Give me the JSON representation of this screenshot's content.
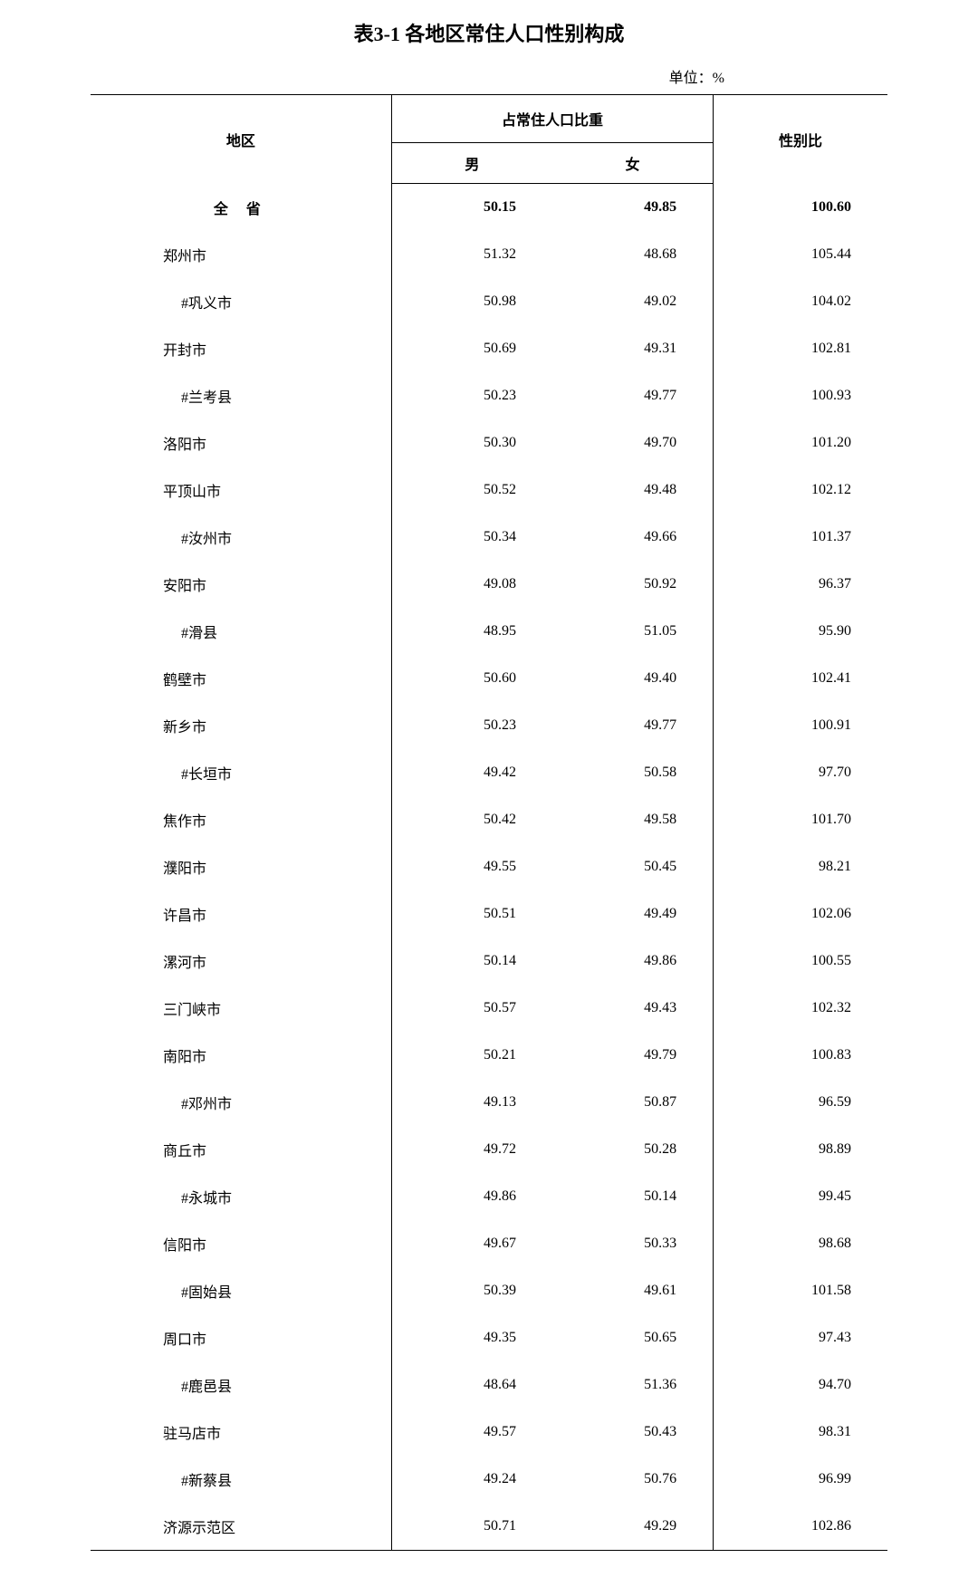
{
  "title": "表3-1 各地区常住人口性别构成",
  "unit": "单位：%",
  "headers": {
    "region": "地区",
    "proportion": "占常住人口比重",
    "male": "男",
    "female": "女",
    "ratio": "性别比"
  },
  "colors": {
    "background": "#ffffff",
    "text": "#000000",
    "border": "#000000"
  },
  "rows": [
    {
      "region": "全 省",
      "male": "50.15",
      "female": "49.85",
      "ratio": "100.60",
      "bold": true,
      "indent": false
    },
    {
      "region": "郑州市",
      "male": "51.32",
      "female": "48.68",
      "ratio": "105.44",
      "bold": false,
      "indent": false
    },
    {
      "region": "#巩义市",
      "male": "50.98",
      "female": "49.02",
      "ratio": "104.02",
      "bold": false,
      "indent": true
    },
    {
      "region": "开封市",
      "male": "50.69",
      "female": "49.31",
      "ratio": "102.81",
      "bold": false,
      "indent": false
    },
    {
      "region": "#兰考县",
      "male": "50.23",
      "female": "49.77",
      "ratio": "100.93",
      "bold": false,
      "indent": true
    },
    {
      "region": "洛阳市",
      "male": "50.30",
      "female": "49.70",
      "ratio": "101.20",
      "bold": false,
      "indent": false
    },
    {
      "region": "平顶山市",
      "male": "50.52",
      "female": "49.48",
      "ratio": "102.12",
      "bold": false,
      "indent": false
    },
    {
      "region": "#汝州市",
      "male": "50.34",
      "female": "49.66",
      "ratio": "101.37",
      "bold": false,
      "indent": true
    },
    {
      "region": "安阳市",
      "male": "49.08",
      "female": "50.92",
      "ratio": "96.37",
      "bold": false,
      "indent": false
    },
    {
      "region": "#滑县",
      "male": "48.95",
      "female": "51.05",
      "ratio": "95.90",
      "bold": false,
      "indent": true
    },
    {
      "region": "鹤壁市",
      "male": "50.60",
      "female": "49.40",
      "ratio": "102.41",
      "bold": false,
      "indent": false
    },
    {
      "region": "新乡市",
      "male": "50.23",
      "female": "49.77",
      "ratio": "100.91",
      "bold": false,
      "indent": false
    },
    {
      "region": "#长垣市",
      "male": "49.42",
      "female": "50.58",
      "ratio": "97.70",
      "bold": false,
      "indent": true
    },
    {
      "region": "焦作市",
      "male": "50.42",
      "female": "49.58",
      "ratio": "101.70",
      "bold": false,
      "indent": false
    },
    {
      "region": "濮阳市",
      "male": "49.55",
      "female": "50.45",
      "ratio": "98.21",
      "bold": false,
      "indent": false
    },
    {
      "region": "许昌市",
      "male": "50.51",
      "female": "49.49",
      "ratio": "102.06",
      "bold": false,
      "indent": false
    },
    {
      "region": "漯河市",
      "male": "50.14",
      "female": "49.86",
      "ratio": "100.55",
      "bold": false,
      "indent": false
    },
    {
      "region": "三门峡市",
      "male": "50.57",
      "female": "49.43",
      "ratio": "102.32",
      "bold": false,
      "indent": false
    },
    {
      "region": "南阳市",
      "male": "50.21",
      "female": "49.79",
      "ratio": "100.83",
      "bold": false,
      "indent": false
    },
    {
      "region": "#邓州市",
      "male": "49.13",
      "female": "50.87",
      "ratio": "96.59",
      "bold": false,
      "indent": true
    },
    {
      "region": "商丘市",
      "male": "49.72",
      "female": "50.28",
      "ratio": "98.89",
      "bold": false,
      "indent": false
    },
    {
      "region": "#永城市",
      "male": "49.86",
      "female": "50.14",
      "ratio": "99.45",
      "bold": false,
      "indent": true
    },
    {
      "region": "信阳市",
      "male": "49.67",
      "female": "50.33",
      "ratio": "98.68",
      "bold": false,
      "indent": false
    },
    {
      "region": "#固始县",
      "male": "50.39",
      "female": "49.61",
      "ratio": "101.58",
      "bold": false,
      "indent": true
    },
    {
      "region": "周口市",
      "male": "49.35",
      "female": "50.65",
      "ratio": "97.43",
      "bold": false,
      "indent": false
    },
    {
      "region": "#鹿邑县",
      "male": "48.64",
      "female": "51.36",
      "ratio": "94.70",
      "bold": false,
      "indent": true
    },
    {
      "region": "驻马店市",
      "male": "49.57",
      "female": "50.43",
      "ratio": "98.31",
      "bold": false,
      "indent": false
    },
    {
      "region": "#新蔡县",
      "male": "49.24",
      "female": "50.76",
      "ratio": "96.99",
      "bold": false,
      "indent": true
    },
    {
      "region": "济源示范区",
      "male": "50.71",
      "female": "49.29",
      "ratio": "102.86",
      "bold": false,
      "indent": false
    }
  ]
}
